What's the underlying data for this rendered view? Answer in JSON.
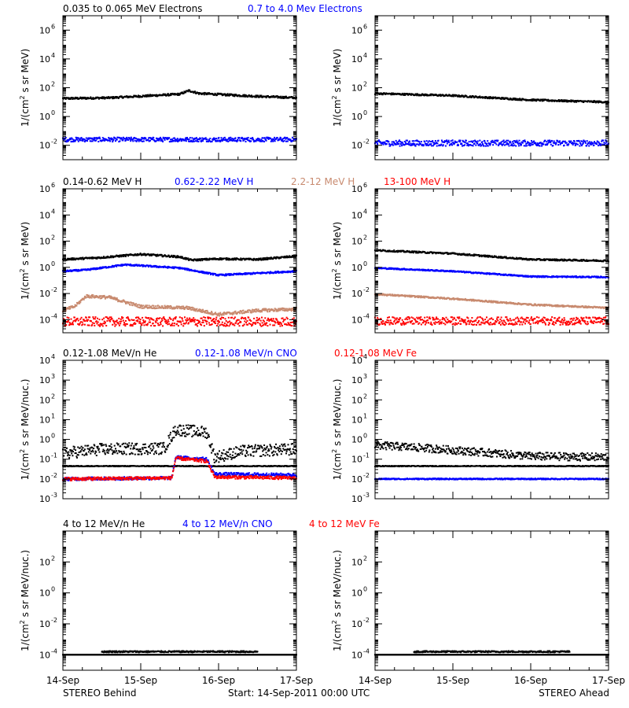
{
  "footer": {
    "left": "STEREO Behind",
    "center": "Start: 14-Sep-2011 00:00 UTC",
    "right": "STEREO Ahead"
  },
  "colors": {
    "black": "#000000",
    "blue": "#0000ff",
    "tan": "#c88a6f",
    "red": "#ff0000"
  },
  "chart_data": {
    "type": "scatter",
    "x_tick_labels": [
      "14-Sep",
      "15-Sep",
      "16-Sep",
      "17-Sep"
    ],
    "x_range_days": [
      0,
      3
    ],
    "panels": [
      {
        "id": "electrons",
        "ylabel_left": "1/(cm",
        "ylabel_sup": "2",
        "ylabel_right": " s sr MeV)",
        "log_range": [
          -3,
          7
        ],
        "y_ticks": [
          {
            "base": "10",
            "exp": "6",
            "pow": 6
          },
          {
            "base": "10",
            "exp": "4",
            "pow": 4
          },
          {
            "base": "10",
            "exp": "2",
            "pow": 2
          },
          {
            "base": "10",
            "exp": "0",
            "pow": 0
          },
          {
            "base": "10",
            "exp": "-2",
            "pow": -2
          }
        ],
        "legend": [
          {
            "label": "0.035 to 0.065 MeV Electrons",
            "color": "#000000"
          },
          {
            "label": "0.7 to 4.0 Mev Electrons",
            "color": "#0000ff"
          }
        ],
        "behind": [
          {
            "color": "#000000",
            "levels": [
              [
                0,
                1.25
              ],
              [
                0.6,
                1.3
              ],
              [
                1.5,
                1.55
              ],
              [
                1.62,
                1.8
              ],
              [
                1.75,
                1.6
              ],
              [
                2.5,
                1.4
              ],
              [
                3,
                1.3
              ]
            ],
            "spread": 0.07
          },
          {
            "color": "#0000ff",
            "levels": [
              [
                0,
                -1.6
              ],
              [
                3,
                -1.6
              ]
            ],
            "spread": 0.15
          }
        ],
        "ahead": [
          {
            "color": "#000000",
            "levels": [
              [
                0,
                1.6
              ],
              [
                1,
                1.45
              ],
              [
                2,
                1.15
              ],
              [
                3,
                1.0
              ]
            ],
            "spread": 0.06
          },
          {
            "color": "#0000ff",
            "levels": [
              [
                0,
                -1.85
              ],
              [
                3,
                -1.85
              ]
            ],
            "spread": 0.2
          }
        ]
      },
      {
        "id": "protons",
        "ylabel_left": "1/(cm",
        "ylabel_sup": "2",
        "ylabel_right": " s sr MeV)",
        "log_range": [
          -5,
          6
        ],
        "y_ticks": [
          {
            "base": "10",
            "exp": "6",
            "pow": 6
          },
          {
            "base": "10",
            "exp": "4",
            "pow": 4
          },
          {
            "base": "10",
            "exp": "2",
            "pow": 2
          },
          {
            "base": "10",
            "exp": "0",
            "pow": 0
          },
          {
            "base": "10",
            "exp": "-2",
            "pow": -2
          },
          {
            "base": "10",
            "exp": "-4",
            "pow": -4
          }
        ],
        "legend": [
          {
            "label": "0.14-0.62 MeV H",
            "color": "#000000"
          },
          {
            "label": "0.62-2.22 MeV H",
            "color": "#0000ff"
          },
          {
            "label": "2.2-12 MeV H",
            "color": "#c88a6f"
          },
          {
            "label": "13-100 MeV H",
            "color": "#ff0000"
          }
        ],
        "behind": [
          {
            "color": "#000000",
            "levels": [
              [
                0,
                0.6
              ],
              [
                0.5,
                0.75
              ],
              [
                1,
                1.0
              ],
              [
                1.5,
                0.8
              ],
              [
                1.65,
                0.55
              ],
              [
                2,
                0.65
              ],
              [
                2.5,
                0.6
              ],
              [
                3,
                0.85
              ]
            ],
            "spread": 0.07
          },
          {
            "color": "#0000ff",
            "levels": [
              [
                0,
                -0.3
              ],
              [
                0.3,
                -0.2
              ],
              [
                0.8,
                0.2
              ],
              [
                1.5,
                -0.05
              ],
              [
                2,
                -0.6
              ],
              [
                2.5,
                -0.45
              ],
              [
                3,
                -0.3
              ]
            ],
            "spread": 0.06
          },
          {
            "color": "#c88a6f",
            "levels": [
              [
                0,
                -3.3
              ],
              [
                0.15,
                -3
              ],
              [
                0.3,
                -2.2
              ],
              [
                0.6,
                -2.3
              ],
              [
                1,
                -3
              ],
              [
                1.6,
                -3.1
              ],
              [
                2,
                -3.6
              ],
              [
                2.5,
                -3.3
              ],
              [
                3,
                -3.2
              ]
            ],
            "spread": 0.12
          },
          {
            "color": "#ff0000",
            "levels": [
              [
                0,
                -4.15
              ],
              [
                3,
                -4.15
              ]
            ],
            "spread": 0.35
          }
        ],
        "ahead": [
          {
            "color": "#000000",
            "levels": [
              [
                0,
                1.3
              ],
              [
                1,
                1.05
              ],
              [
                2,
                0.6
              ],
              [
                3,
                0.5
              ]
            ],
            "spread": 0.06
          },
          {
            "color": "#0000ff",
            "levels": [
              [
                0,
                -0.05
              ],
              [
                1,
                -0.3
              ],
              [
                2,
                -0.7
              ],
              [
                3,
                -0.75
              ]
            ],
            "spread": 0.05
          },
          {
            "color": "#c88a6f",
            "levels": [
              [
                0,
                -2.05
              ],
              [
                1,
                -2.4
              ],
              [
                2,
                -2.85
              ],
              [
                3,
                -3.1
              ]
            ],
            "spread": 0.06
          },
          {
            "color": "#ff0000",
            "levels": [
              [
                0,
                -4.1
              ],
              [
                3,
                -4.1
              ]
            ],
            "spread": 0.3
          }
        ]
      },
      {
        "id": "heavy-low",
        "ylabel_left": "1/(cm",
        "ylabel_sup": "2",
        "ylabel_right": " s sr MeV/nuc.)",
        "log_range": [
          -3,
          4
        ],
        "y_ticks": [
          {
            "base": "10",
            "exp": "4",
            "pow": 4
          },
          {
            "base": "10",
            "exp": "3",
            "pow": 3
          },
          {
            "base": "10",
            "exp": "2",
            "pow": 2
          },
          {
            "base": "10",
            "exp": "1",
            "pow": 1
          },
          {
            "base": "10",
            "exp": "0",
            "pow": 0
          },
          {
            "base": "10",
            "exp": "-1",
            "pow": -1
          },
          {
            "base": "10",
            "exp": "-2",
            "pow": -2
          },
          {
            "base": "10",
            "exp": "-3",
            "pow": -3
          }
        ],
        "legend": [
          {
            "label": "0.12-1.08 MeV/n He",
            "color": "#000000"
          },
          {
            "label": "0.12-1.08 MeV/n CNO",
            "color": "#0000ff"
          },
          {
            "label": "0.12-1.08 MeV Fe",
            "color": "#ff0000"
          }
        ],
        "behind": [
          {
            "color": "#000000",
            "levels": [
              [
                0,
                -0.7
              ],
              [
                0.5,
                -0.5
              ],
              [
                1.3,
                -0.45
              ],
              [
                1.45,
                0.5
              ],
              [
                1.85,
                0.35
              ],
              [
                1.95,
                -0.9
              ],
              [
                2.3,
                -0.6
              ],
              [
                3,
                -0.5
              ]
            ],
            "spread": 0.3
          },
          {
            "color": "#000000",
            "levels": [
              [
                0,
                -1.35
              ],
              [
                3,
                -1.35
              ]
            ],
            "spread": 0.02
          },
          {
            "color": "#0000ff",
            "levels": [
              [
                0,
                -2.0
              ],
              [
                1.4,
                -1.95
              ],
              [
                1.45,
                -0.9
              ],
              [
                1.85,
                -1.0
              ],
              [
                1.95,
                -1.75
              ],
              [
                3,
                -1.8
              ]
            ],
            "spread": 0.08
          },
          {
            "color": "#ff0000",
            "levels": [
              [
                0,
                -2.0
              ],
              [
                1.4,
                -1.95
              ],
              [
                1.45,
                -0.95
              ],
              [
                1.85,
                -1.1
              ],
              [
                1.95,
                -1.9
              ],
              [
                3,
                -1.95
              ]
            ],
            "spread": 0.08
          }
        ],
        "ahead": [
          {
            "color": "#000000",
            "levels": [
              [
                0,
                -0.3
              ],
              [
                0.5,
                -0.4
              ],
              [
                1.2,
                -0.6
              ],
              [
                2,
                -0.85
              ],
              [
                3,
                -0.9
              ]
            ],
            "spread": 0.2
          },
          {
            "color": "#000000",
            "levels": [
              [
                0,
                -1.35
              ],
              [
                3,
                -1.35
              ]
            ],
            "spread": 0.02
          },
          {
            "color": "#0000ff",
            "levels": [
              [
                0,
                -2.0
              ],
              [
                3,
                -2.0
              ]
            ],
            "spread": 0.03
          }
        ]
      },
      {
        "id": "heavy-high",
        "ylabel_left": "1/(cm",
        "ylabel_sup": "2",
        "ylabel_right": " s sr MeV/nuc.)",
        "log_range": [
          -5,
          4
        ],
        "y_ticks": [
          {
            "base": "10",
            "exp": "2",
            "pow": 2
          },
          {
            "base": "10",
            "exp": "0",
            "pow": 0
          },
          {
            "base": "10",
            "exp": "-2",
            "pow": -2
          },
          {
            "base": "10",
            "exp": "-4",
            "pow": -4
          }
        ],
        "legend": [
          {
            "label": "4 to 12 MeV/n He",
            "color": "#000000"
          },
          {
            "label": "4 to 12 MeV/n CNO",
            "color": "#0000ff"
          },
          {
            "label": "4 to 12 MeV Fe",
            "color": "#ff0000"
          }
        ],
        "behind": [
          {
            "color": "#000000",
            "levels": [
              [
                0,
                -4.0
              ],
              [
                3,
                -4.0
              ]
            ],
            "spread": 0.0
          },
          {
            "color": "#000000",
            "levels": [
              [
                0.5,
                -3.8
              ],
              [
                2.5,
                -3.8
              ]
            ],
            "spread": 0.05
          }
        ],
        "ahead": [
          {
            "color": "#000000",
            "levels": [
              [
                0,
                -4.0
              ],
              [
                3,
                -4.0
              ]
            ],
            "spread": 0.0
          },
          {
            "color": "#000000",
            "levels": [
              [
                0.5,
                -3.8
              ],
              [
                2.5,
                -3.8
              ]
            ],
            "spread": 0.05
          }
        ]
      }
    ]
  }
}
